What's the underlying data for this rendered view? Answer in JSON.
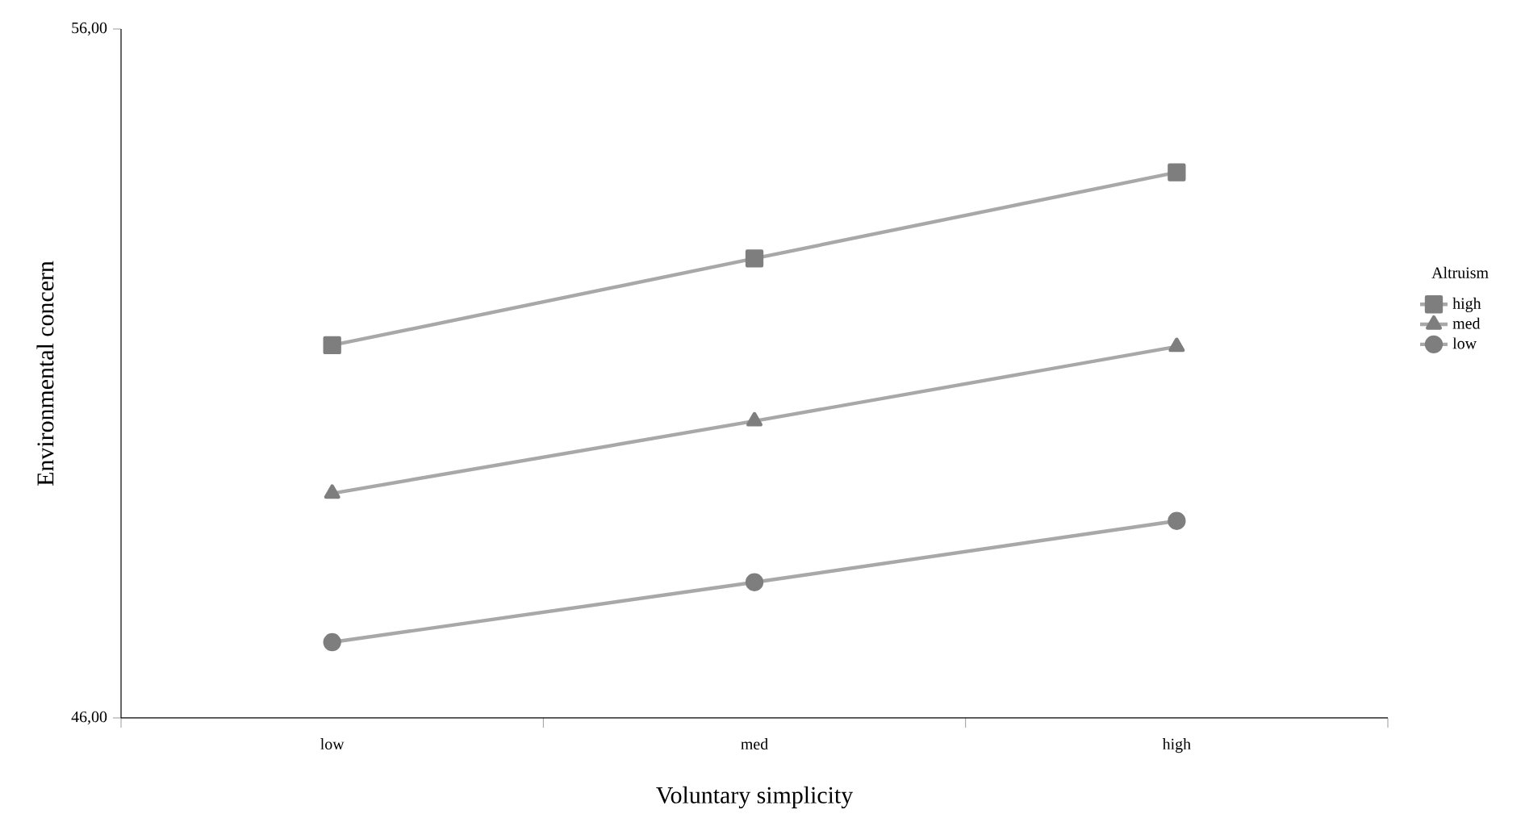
{
  "chart_data": {
    "type": "line",
    "xlabel": "Voluntary simplicity",
    "ylabel": "Environmental concern",
    "legend_title": "Altruism",
    "categories": [
      "low",
      "med",
      "high"
    ],
    "series": [
      {
        "name": "high",
        "color": "#a8a8a8",
        "marker": "square",
        "values": [
          51.41,
          52.67,
          53.92
        ]
      },
      {
        "name": "med",
        "color": "#a8a8a8",
        "marker": "triangle",
        "values": [
          49.26,
          50.31,
          51.39
        ]
      },
      {
        "name": "low",
        "color": "#a8a8a8",
        "marker": "circle",
        "values": [
          47.1,
          47.97,
          48.86
        ]
      }
    ],
    "ylim": [
      46,
      56
    ],
    "yticks": [
      {
        "value": 46,
        "label": "46,00"
      },
      {
        "value": 56,
        "label": "56,00"
      }
    ],
    "legend": "right",
    "grid": false
  }
}
